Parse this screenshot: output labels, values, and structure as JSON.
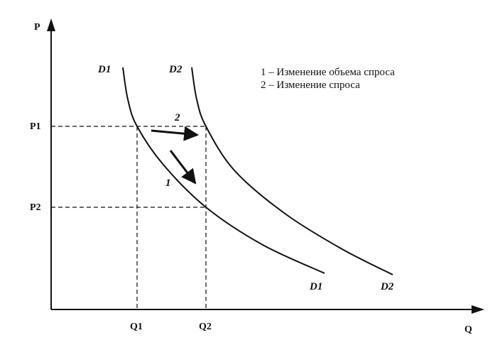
{
  "axes": {
    "y_label": "P",
    "x_label": "Q"
  },
  "price_levels": [
    "P1",
    "P2"
  ],
  "quantity_levels": [
    "Q1",
    "Q2"
  ],
  "curves": [
    {
      "top_label": "D1",
      "bottom_label": "D1"
    },
    {
      "top_label": "D2",
      "bottom_label": "D2"
    }
  ],
  "arrows": [
    "2",
    "1"
  ],
  "legend": [
    "1 – Изменение объема спроса",
    "2 – Изменение спроса"
  ]
}
